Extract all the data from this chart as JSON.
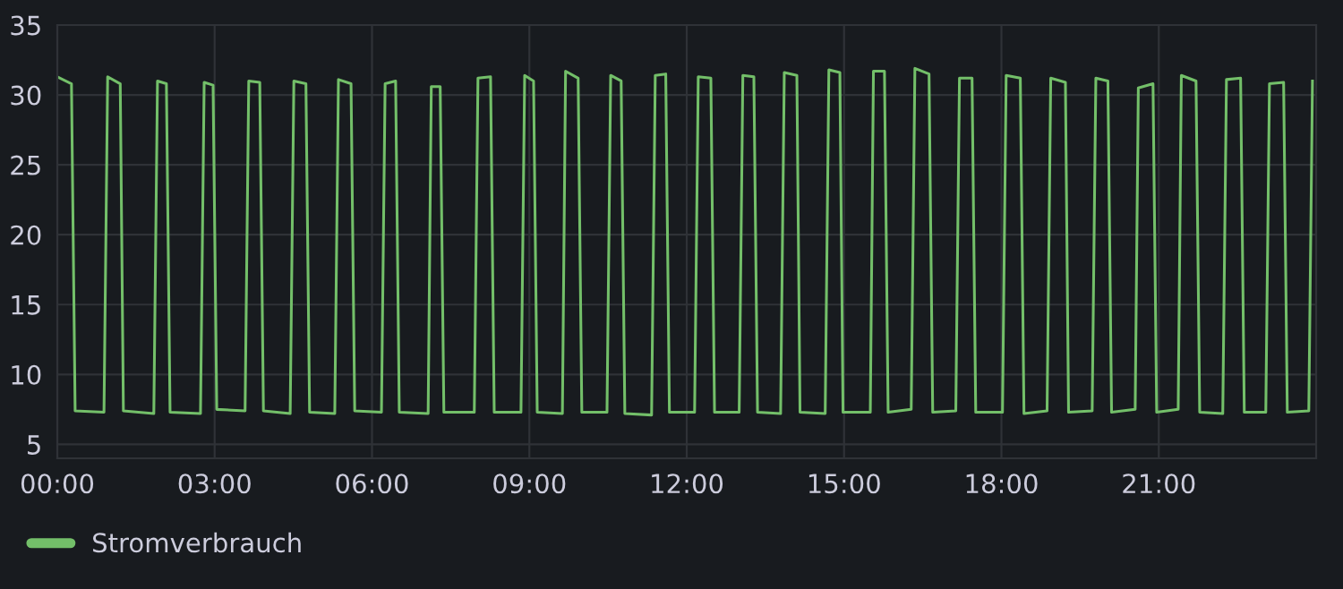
{
  "chart_data": {
    "type": "line",
    "ylim": [
      4,
      35
    ],
    "yticks": [
      5,
      10,
      15,
      20,
      25,
      30,
      35
    ],
    "xlim": [
      0,
      24
    ],
    "xticks": [
      {
        "value": 0,
        "label": "00:00"
      },
      {
        "value": 3,
        "label": "03:00"
      },
      {
        "value": 6,
        "label": "06:00"
      },
      {
        "value": 9,
        "label": "09:00"
      },
      {
        "value": 12,
        "label": "12:00"
      },
      {
        "value": 15,
        "label": "15:00"
      },
      {
        "value": 18,
        "label": "18:00"
      },
      {
        "value": 21,
        "label": "21:00"
      }
    ],
    "grid": true,
    "legend": "bottom left",
    "marker": "none",
    "line_style": "solid",
    "series": [
      {
        "name": "Stromverbrauch",
        "color": "#73bf69",
        "x": [
          0,
          0.27,
          0.34,
          0.89,
          0.96,
          1.2,
          1.26,
          1.84,
          1.91,
          2.08,
          2.15,
          2.73,
          2.8,
          2.97,
          3.04,
          3.58,
          3.65,
          3.86,
          3.93,
          4.44,
          4.51,
          4.74,
          4.81,
          5.29,
          5.36,
          5.6,
          5.67,
          6.18,
          6.25,
          6.45,
          6.52,
          7.07,
          7.13,
          7.3,
          7.37,
          7.95,
          8.02,
          8.26,
          8.33,
          8.84,
          8.91,
          9.08,
          9.15,
          9.63,
          9.69,
          9.93,
          10.0,
          10.48,
          10.55,
          10.75,
          10.82,
          11.33,
          11.4,
          11.6,
          11.67,
          12.15,
          12.22,
          12.46,
          12.53,
          13.0,
          13.07,
          13.28,
          13.35,
          13.79,
          13.86,
          14.1,
          14.16,
          14.64,
          14.71,
          14.92,
          14.98,
          15.5,
          15.56,
          15.77,
          15.84,
          16.28,
          16.35,
          16.62,
          16.69,
          17.13,
          17.2,
          17.44,
          17.51,
          18.02,
          18.09,
          18.36,
          18.43,
          18.87,
          18.94,
          19.22,
          19.28,
          19.73,
          19.8,
          20.03,
          20.1,
          20.55,
          20.61,
          20.89,
          20.96,
          21.37,
          21.43,
          21.71,
          21.78,
          22.22,
          22.29,
          22.56,
          22.63,
          23.04,
          23.11,
          23.38,
          23.45,
          23.86,
          23.93
        ],
        "values": [
          31.3,
          30.8,
          7.4,
          7.3,
          31.3,
          30.8,
          7.4,
          7.2,
          31.0,
          30.8,
          7.3,
          7.2,
          30.9,
          30.7,
          7.5,
          7.4,
          31.0,
          30.9,
          7.4,
          7.2,
          31.0,
          30.8,
          7.3,
          7.2,
          31.1,
          30.8,
          7.4,
          7.3,
          30.8,
          31.0,
          7.3,
          7.2,
          30.6,
          30.6,
          7.3,
          7.3,
          31.2,
          31.3,
          7.3,
          7.3,
          31.4,
          31.0,
          7.3,
          7.2,
          31.7,
          31.2,
          7.3,
          7.3,
          31.4,
          31.0,
          7.2,
          7.1,
          31.4,
          31.5,
          7.3,
          7.3,
          31.3,
          31.2,
          7.3,
          7.3,
          31.4,
          31.3,
          7.3,
          7.2,
          31.6,
          31.4,
          7.3,
          7.2,
          31.8,
          31.6,
          7.3,
          7.3,
          31.7,
          31.7,
          7.3,
          7.5,
          31.9,
          31.5,
          7.3,
          7.4,
          31.2,
          31.2,
          7.3,
          7.3,
          31.4,
          31.2,
          7.2,
          7.4,
          31.2,
          30.9,
          7.3,
          7.4,
          31.2,
          31.0,
          7.3,
          7.5,
          30.5,
          30.8,
          7.3,
          7.5,
          31.4,
          31.0,
          7.3,
          7.2,
          31.1,
          31.2,
          7.3,
          7.3,
          30.8,
          30.9,
          7.3,
          7.4,
          31.0
        ]
      }
    ]
  }
}
